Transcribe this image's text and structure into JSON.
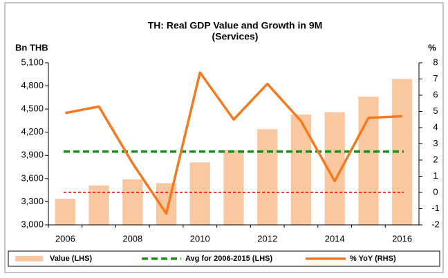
{
  "chart_data": {
    "type": "bar",
    "title": "TH: Real GDP Value and Growth in 9M",
    "subtitle": "(Services)",
    "y_label": "Bn THB",
    "y2_label": "%",
    "categories": [
      "2006",
      null,
      "2008",
      null,
      "2010",
      null,
      "2012",
      null,
      "2014",
      null,
      "2016"
    ],
    "series": [
      {
        "name": "Value (LHS)",
        "type": "bar",
        "color": "#fac8a0",
        "values": [
          3340,
          3510,
          3590,
          3540,
          3810,
          3970,
          4240,
          4430,
          4460,
          4660,
          4890
        ]
      },
      {
        "name": "% YoY (RHS)",
        "type": "line",
        "axis": "y2",
        "color": "#f47a20",
        "values": [
          4.9,
          5.3,
          1.8,
          -1.3,
          7.4,
          4.5,
          6.7,
          4.4,
          0.7,
          4.6,
          4.7
        ]
      }
    ],
    "reference_lines": [
      {
        "name": "Avg for 2006-2015 (LHS)",
        "value": 3950,
        "axis": "y",
        "color": "#1e8c1e"
      },
      {
        "value": 0,
        "axis": "y2",
        "color": "#ff0000"
      }
    ],
    "ylim": [
      3000,
      5100
    ],
    "yticks": [
      {
        "value": 3000,
        "label": "3,000"
      },
      {
        "value": 3300,
        "label": "3,300"
      },
      {
        "value": 3600,
        "label": "3,600"
      },
      {
        "value": 3900,
        "label": "3,900"
      },
      {
        "value": 4200,
        "label": "4,200"
      },
      {
        "value": 4500,
        "label": "4,500"
      },
      {
        "value": 4800,
        "label": "4,800"
      },
      {
        "value": 5100,
        "label": "5,100"
      }
    ],
    "y2lim": [
      -2,
      8
    ],
    "y2ticks": [
      -2,
      -1,
      0,
      1,
      2,
      3,
      4,
      5,
      6,
      7,
      8
    ]
  }
}
